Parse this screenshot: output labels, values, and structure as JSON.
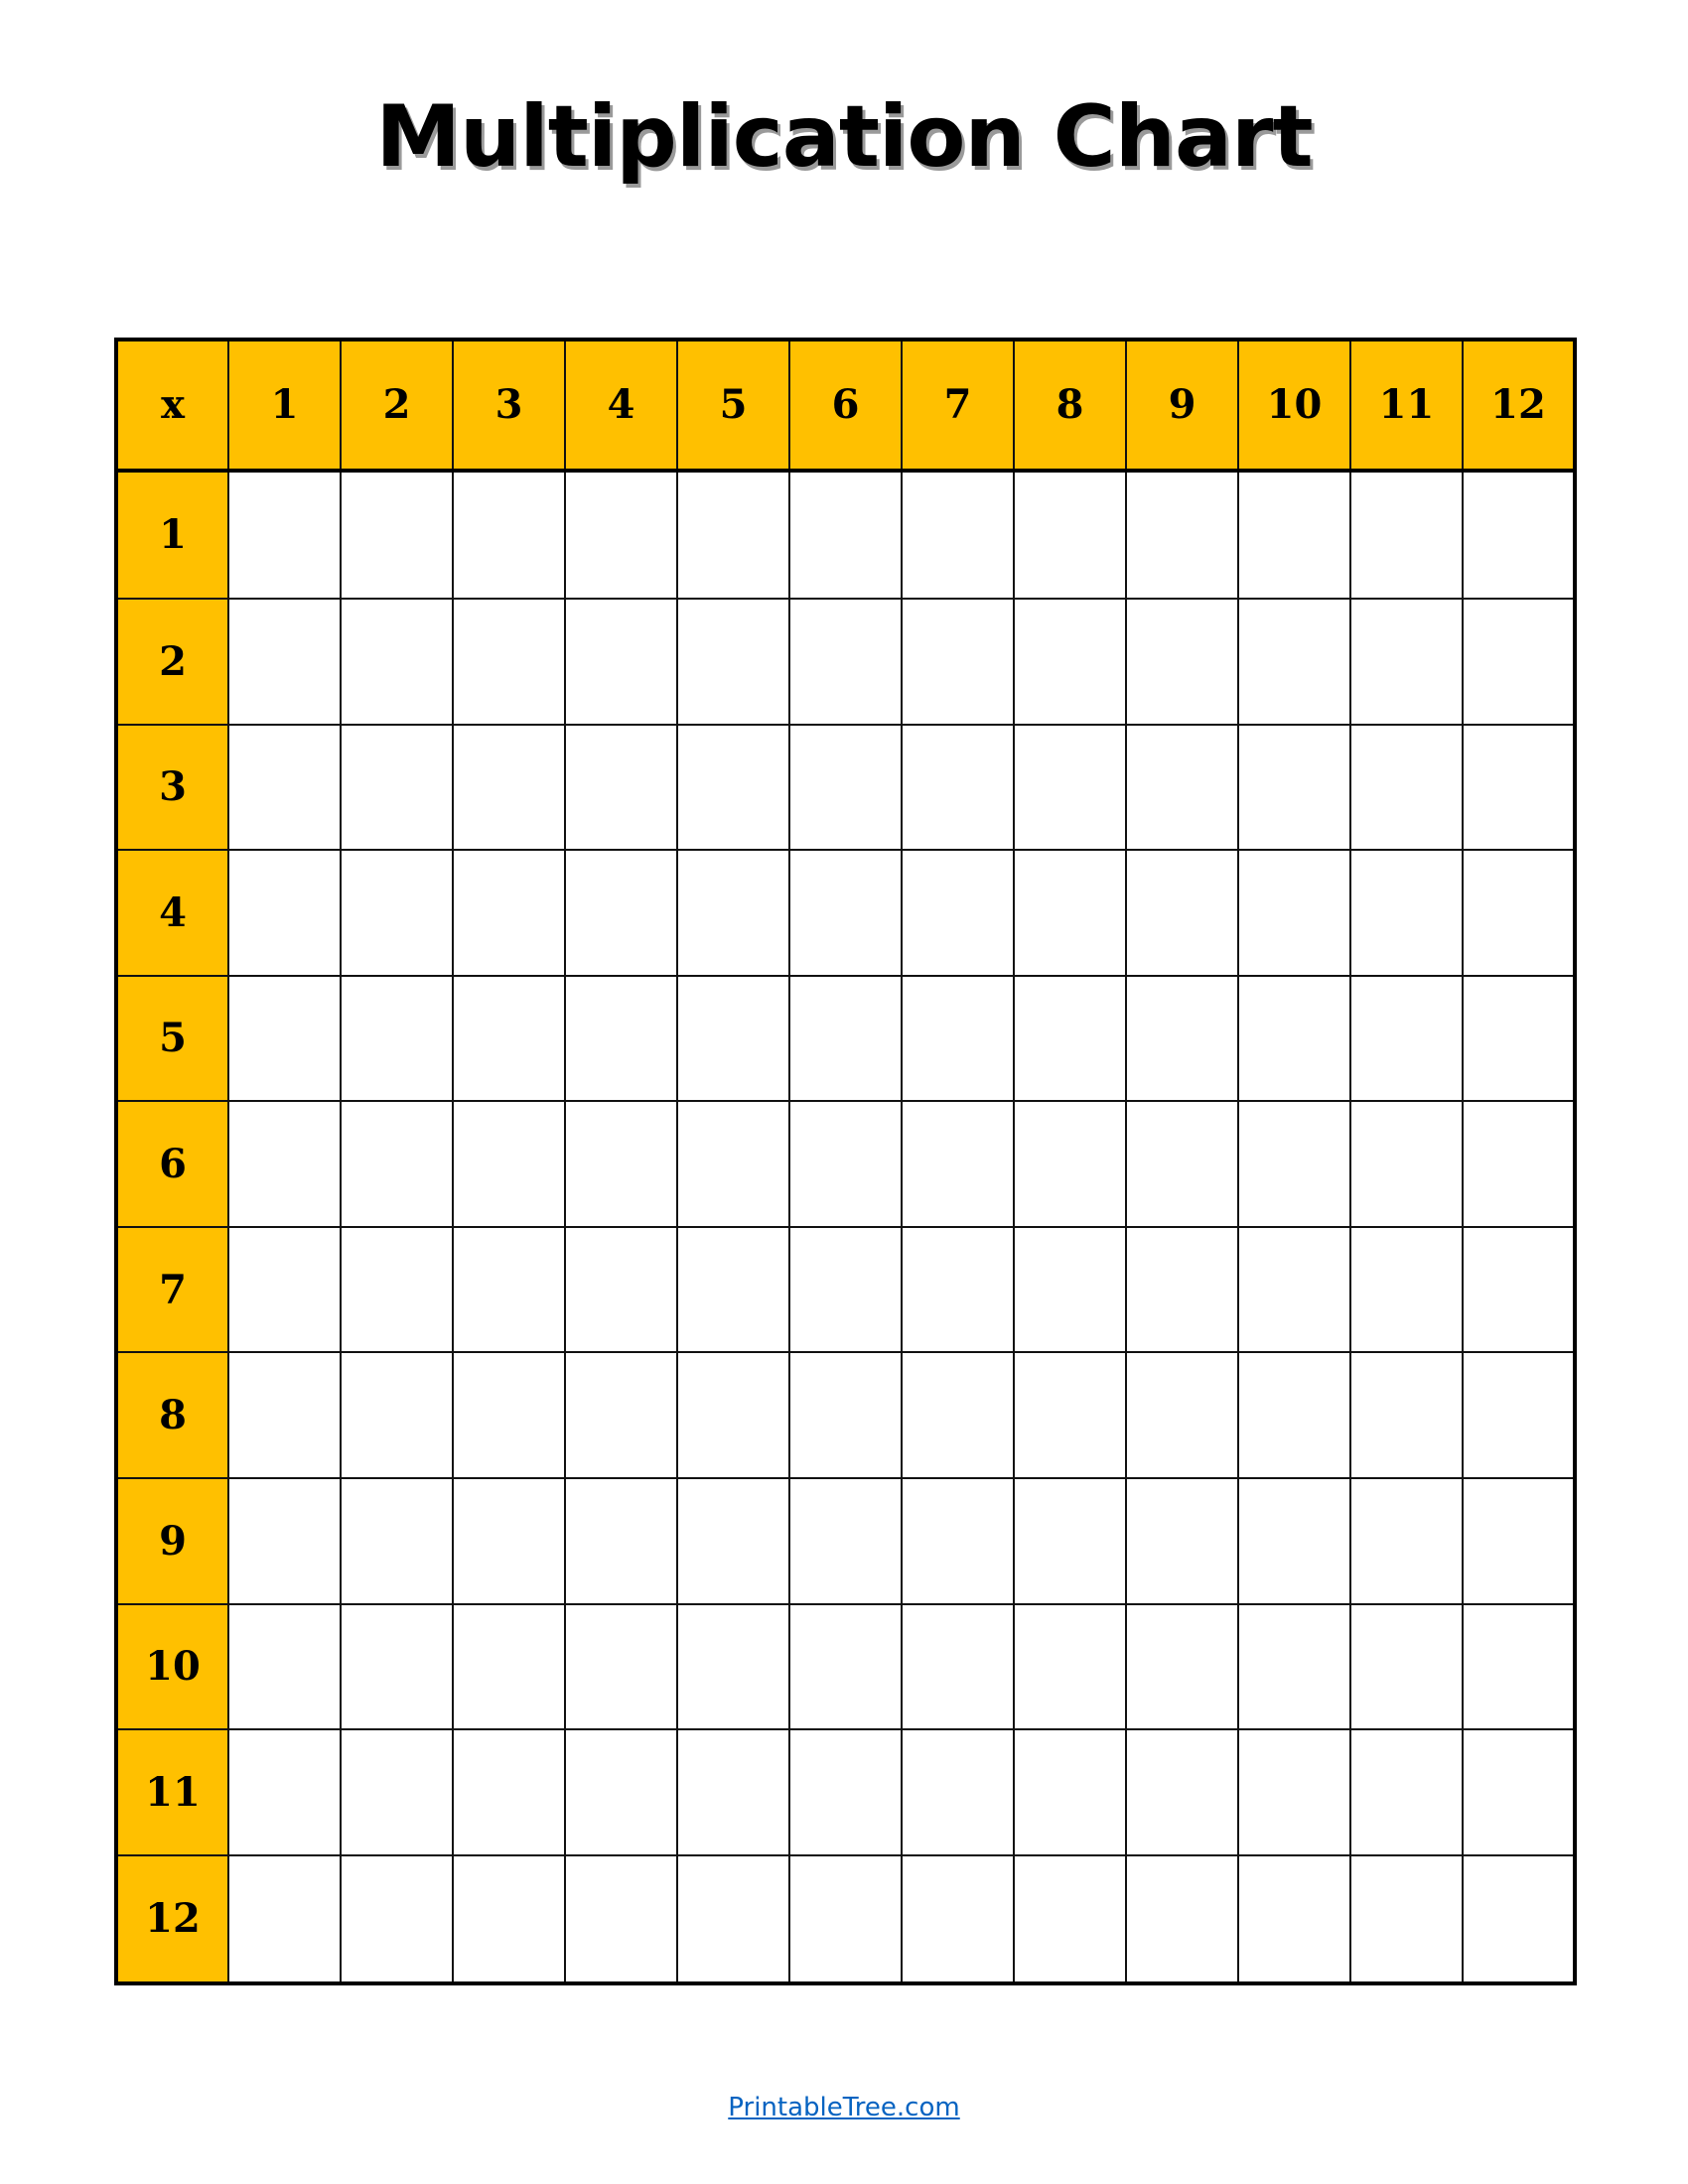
{
  "title": "Multiplication Chart",
  "corner_label": "x",
  "column_headers": [
    "1",
    "2",
    "3",
    "4",
    "5",
    "6",
    "7",
    "8",
    "9",
    "10",
    "11",
    "12"
  ],
  "row_headers": [
    "1",
    "2",
    "3",
    "4",
    "5",
    "6",
    "7",
    "8",
    "9",
    "10",
    "11",
    "12"
  ],
  "cells_filled": false,
  "footer_link": "PrintableTree.com",
  "colors": {
    "header_fill": "#FFC000",
    "border": "#000000",
    "link": "#0563C1"
  }
}
